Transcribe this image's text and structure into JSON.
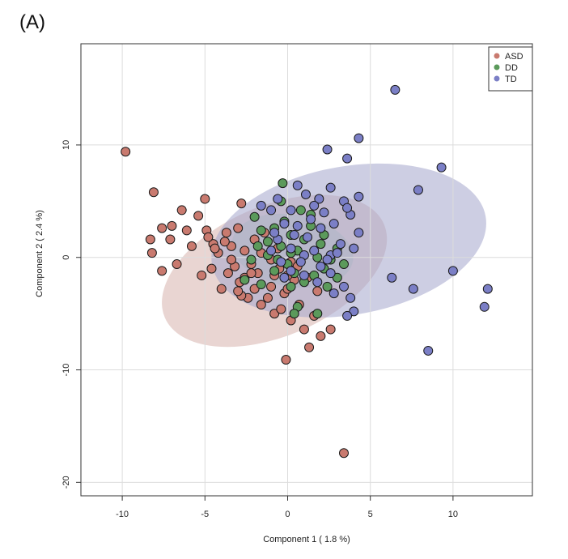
{
  "panel_label": "(A)",
  "chart_data": {
    "type": "scatter",
    "xlabel": "Component 1 ( 1.8 %)",
    "ylabel": "Component 2 ( 2.4 %)",
    "xlim": [
      -12.5,
      14.8
    ],
    "ylim": [
      -21.2,
      19.0
    ],
    "x_ticks": [
      -10,
      -5,
      0,
      5,
      10
    ],
    "y_ticks": [
      -20,
      -10,
      0,
      10
    ],
    "grid": true,
    "legend_position": "top-right",
    "series": [
      {
        "name": "ASD",
        "color": "#c97a6f",
        "ellipse": {
          "cx": -0.8,
          "cy": -1.2,
          "rx": 7.2,
          "ry": 5.8,
          "angle_deg": -23,
          "fill": "#d7b3ad"
        },
        "points": [
          [
            -9.8,
            9.4
          ],
          [
            -8.1,
            5.8
          ],
          [
            -7.6,
            2.6
          ],
          [
            -8.3,
            1.6
          ],
          [
            -8.2,
            0.4
          ],
          [
            -7.6,
            -1.2
          ],
          [
            -7.0,
            2.8
          ],
          [
            -7.1,
            1.6
          ],
          [
            -6.7,
            -0.6
          ],
          [
            -6.4,
            4.2
          ],
          [
            -6.1,
            2.4
          ],
          [
            -5.8,
            1.0
          ],
          [
            -5.4,
            3.7
          ],
          [
            -5.0,
            5.2
          ],
          [
            -4.9,
            2.4
          ],
          [
            -4.5,
            1.2
          ],
          [
            -4.6,
            -1.0
          ],
          [
            -4.2,
            0.4
          ],
          [
            -4.0,
            -2.8
          ],
          [
            -3.7,
            2.2
          ],
          [
            -3.4,
            1.0
          ],
          [
            -3.2,
            -0.8
          ],
          [
            -2.9,
            -2.2
          ],
          [
            -2.6,
            0.6
          ],
          [
            -2.4,
            -3.6
          ],
          [
            -2.0,
            1.6
          ],
          [
            -1.8,
            -1.4
          ],
          [
            -1.6,
            -4.2
          ],
          [
            -1.2,
            0.2
          ],
          [
            -1.0,
            -2.6
          ],
          [
            -0.8,
            -5.0
          ],
          [
            -0.5,
            -1.0
          ],
          [
            -0.2,
            -3.2
          ],
          [
            0.2,
            -0.4
          ],
          [
            0.4,
            -2.0
          ],
          [
            0.7,
            -4.2
          ],
          [
            1.0,
            -6.4
          ],
          [
            1.3,
            -8.0
          ],
          [
            1.6,
            -5.2
          ],
          [
            2.0,
            -7.0
          ],
          [
            2.6,
            -6.4
          ],
          [
            -0.1,
            -9.1
          ],
          [
            3.4,
            -17.4
          ],
          [
            -2.8,
            4.8
          ],
          [
            -1.4,
            2.2
          ],
          [
            -3.0,
            2.6
          ],
          [
            -2.2,
            -0.6
          ],
          [
            -2.6,
            -1.8
          ],
          [
            -1.0,
            -0.2
          ],
          [
            -0.6,
            0.8
          ],
          [
            0.0,
            -1.6
          ],
          [
            0.6,
            -0.8
          ],
          [
            1.2,
            -1.8
          ],
          [
            1.8,
            -3.0
          ],
          [
            -3.6,
            -1.4
          ],
          [
            -4.4,
            0.8
          ],
          [
            -5.2,
            -1.6
          ],
          [
            -4.8,
            1.8
          ],
          [
            -3.8,
            1.4
          ],
          [
            -3.4,
            -0.2
          ],
          [
            -2.0,
            -2.8
          ],
          [
            -1.2,
            -3.6
          ],
          [
            -0.4,
            -4.6
          ],
          [
            0.2,
            -5.6
          ],
          [
            -2.8,
            -3.4
          ],
          [
            -1.6,
            0.4
          ],
          [
            -0.8,
            -1.6
          ],
          [
            0.0,
            -2.8
          ],
          [
            -3.0,
            -3.0
          ],
          [
            -2.2,
            -1.4
          ]
        ]
      },
      {
        "name": "DD",
        "color": "#5b9a5b",
        "ellipse": {
          "cx": 0.3,
          "cy": 0.6,
          "rx": 3.7,
          "ry": 3.2,
          "angle_deg": 10,
          "fill": "#b9c8bd"
        },
        "points": [
          [
            -2.0,
            3.6
          ],
          [
            -1.6,
            2.4
          ],
          [
            -1.2,
            1.4
          ],
          [
            -0.8,
            2.6
          ],
          [
            -0.4,
            1.0
          ],
          [
            -0.4,
            5.0
          ],
          [
            -0.3,
            6.6
          ],
          [
            0.2,
            2.0
          ],
          [
            0.6,
            0.6
          ],
          [
            1.0,
            1.6
          ],
          [
            1.4,
            2.8
          ],
          [
            1.8,
            0.0
          ],
          [
            2.2,
            -1.0
          ],
          [
            2.6,
            -0.2
          ],
          [
            3.0,
            -1.8
          ],
          [
            3.4,
            -0.6
          ],
          [
            3.0,
            0.8
          ],
          [
            2.0,
            1.2
          ],
          [
            0.4,
            -1.4
          ],
          [
            0.0,
            -0.6
          ],
          [
            -0.6,
            -0.2
          ],
          [
            -1.2,
            0.2
          ],
          [
            -1.8,
            1.0
          ],
          [
            -2.2,
            -0.2
          ],
          [
            -2.6,
            -2.0
          ],
          [
            -1.6,
            -2.4
          ],
          [
            -0.8,
            -1.2
          ],
          [
            0.2,
            -2.6
          ],
          [
            1.0,
            -2.2
          ],
          [
            1.6,
            -1.6
          ],
          [
            2.4,
            -2.6
          ],
          [
            1.8,
            -5.0
          ],
          [
            0.6,
            -4.4
          ],
          [
            0.4,
            -5.0
          ],
          [
            -0.2,
            3.2
          ],
          [
            0.8,
            4.2
          ],
          [
            1.4,
            3.8
          ],
          [
            2.2,
            2.0
          ],
          [
            0.2,
            0.4
          ]
        ]
      },
      {
        "name": "TD",
        "color": "#7b7fc6",
        "ellipse": {
          "cx": 3.7,
          "cy": 1.5,
          "rx": 8.4,
          "ry": 6.6,
          "angle_deg": -10,
          "fill": "#a4a6cc"
        },
        "points": [
          [
            6.5,
            14.9
          ],
          [
            4.3,
            10.6
          ],
          [
            2.4,
            9.6
          ],
          [
            3.6,
            8.8
          ],
          [
            9.3,
            8.0
          ],
          [
            7.9,
            6.0
          ],
          [
            0.6,
            6.4
          ],
          [
            1.1,
            5.6
          ],
          [
            1.9,
            5.2
          ],
          [
            2.6,
            6.2
          ],
          [
            3.4,
            5.0
          ],
          [
            4.3,
            5.4
          ],
          [
            3.8,
            3.8
          ],
          [
            4.3,
            2.2
          ],
          [
            3.2,
            1.2
          ],
          [
            2.6,
            0.2
          ],
          [
            2.0,
            -0.8
          ],
          [
            1.6,
            0.6
          ],
          [
            1.2,
            1.8
          ],
          [
            0.6,
            2.8
          ],
          [
            0.2,
            4.2
          ],
          [
            -0.2,
            3.0
          ],
          [
            -0.6,
            1.6
          ],
          [
            -1.0,
            0.6
          ],
          [
            -0.4,
            -0.4
          ],
          [
            0.2,
            -1.2
          ],
          [
            1.0,
            -1.6
          ],
          [
            1.8,
            -2.2
          ],
          [
            2.6,
            -1.4
          ],
          [
            3.4,
            -2.6
          ],
          [
            3.8,
            -3.6
          ],
          [
            4.0,
            -4.8
          ],
          [
            3.6,
            -5.2
          ],
          [
            6.3,
            -1.8
          ],
          [
            7.6,
            -2.8
          ],
          [
            10.0,
            -1.2
          ],
          [
            12.1,
            -2.8
          ],
          [
            11.9,
            -4.4
          ],
          [
            8.5,
            -8.3
          ],
          [
            -1.0,
            4.2
          ],
          [
            -0.6,
            5.2
          ],
          [
            0.4,
            2.0
          ],
          [
            1.4,
            3.4
          ],
          [
            2.2,
            4.0
          ],
          [
            2.8,
            3.0
          ],
          [
            3.6,
            4.4
          ],
          [
            2.0,
            2.6
          ],
          [
            1.0,
            0.2
          ],
          [
            0.2,
            0.8
          ],
          [
            -0.2,
            -1.8
          ],
          [
            0.8,
            -0.4
          ],
          [
            2.4,
            -0.2
          ],
          [
            3.0,
            0.4
          ],
          [
            4.0,
            0.8
          ],
          [
            1.6,
            4.6
          ],
          [
            -1.6,
            4.6
          ],
          [
            -0.8,
            2.2
          ],
          [
            2.8,
            -3.2
          ]
        ]
      }
    ]
  }
}
